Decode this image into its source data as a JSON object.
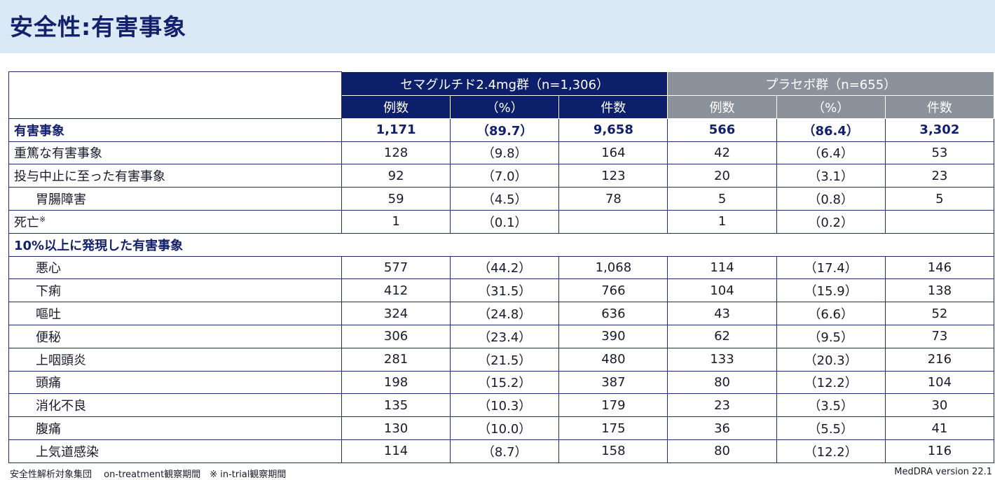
{
  "header": {
    "title": "安全性:有害事象"
  },
  "table": {
    "groups": [
      "セマグルチド2.4mg群（n=1,306）",
      "プラセボ群（n=655）"
    ],
    "columns": [
      "例数",
      "（%）",
      "件数",
      "例数",
      "（%）",
      "件数"
    ],
    "rows": [
      {
        "label": "有害事象",
        "values": [
          "1,171",
          "（89.7）",
          "9,658",
          "566",
          "（86.4）",
          "3,302"
        ]
      },
      {
        "label": "重篤な有害事象",
        "values": [
          "128",
          "（9.8）",
          "164",
          "42",
          "（6.4）",
          "53"
        ]
      },
      {
        "label": "投与中止に至った有害事象",
        "values": [
          "92",
          "（7.0）",
          "123",
          "20",
          "（3.1）",
          "23"
        ]
      },
      {
        "label": "胃腸障害",
        "values": [
          "59",
          "（4.5）",
          "78",
          "5",
          "（0.8）",
          "5"
        ]
      },
      {
        "label": "死亡",
        "note": "※",
        "values": [
          "1",
          "（0.1）",
          null,
          "1",
          "（0.2）",
          null
        ]
      },
      {
        "label": "10%以上に発現した有害事象"
      },
      {
        "label": "悪心",
        "values": [
          "577",
          "（44.2）",
          "1,068",
          "114",
          "（17.4）",
          "146"
        ]
      },
      {
        "label": "下痢",
        "values": [
          "412",
          "（31.5）",
          "766",
          "104",
          "（15.9）",
          "138"
        ]
      },
      {
        "label": "嘔吐",
        "values": [
          "324",
          "（24.8）",
          "636",
          "43",
          "（6.6）",
          "52"
        ]
      },
      {
        "label": "便秘",
        "values": [
          "306",
          "（23.4）",
          "390",
          "62",
          "（9.5）",
          "73"
        ]
      },
      {
        "label": "上咽頭炎",
        "values": [
          "281",
          "（21.5）",
          "480",
          "133",
          "（20.3）",
          "216"
        ]
      },
      {
        "label": "頭痛",
        "values": [
          "198",
          "（15.2）",
          "387",
          "80",
          "（12.2）",
          "104"
        ]
      },
      {
        "label": "消化不良",
        "values": [
          "135",
          "（10.3）",
          "179",
          "23",
          "（3.5）",
          "30"
        ]
      },
      {
        "label": "腹痛",
        "values": [
          "130",
          "（10.0）",
          "175",
          "36",
          "（5.5）",
          "41"
        ]
      },
      {
        "label": "上気道感染",
        "values": [
          "114",
          "（8.7）",
          "158",
          "80",
          "（12.2）",
          "116"
        ]
      }
    ]
  },
  "footer": {
    "left": "安全性解析対象集団　 on-treatment観察期間　※ in-trial観察期間",
    "right": "MedDRA version 22.1"
  }
}
